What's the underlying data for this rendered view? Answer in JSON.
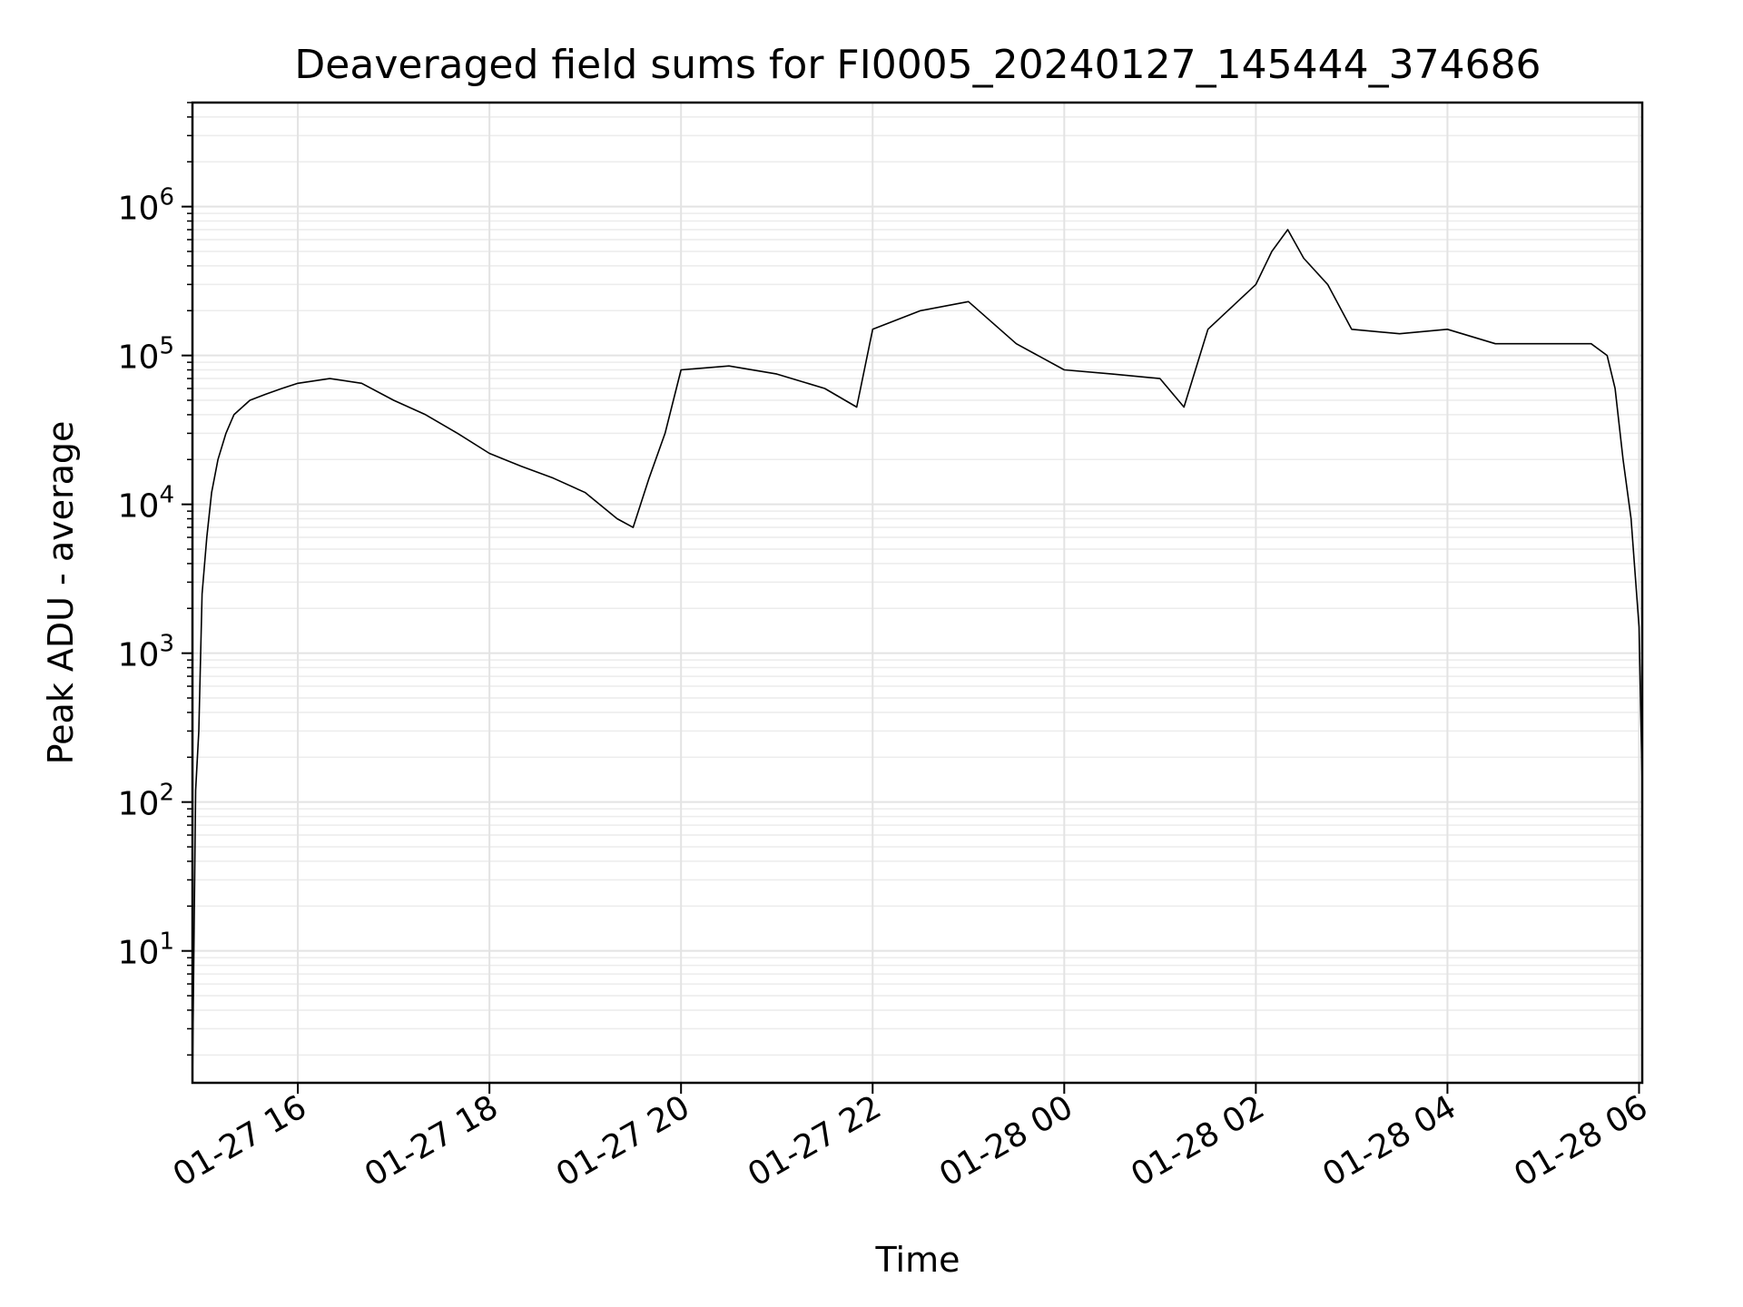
{
  "chart_data": {
    "type": "line",
    "title": "Deaveraged field sums for FI0005_20240127_145444_374686",
    "xlabel": "Time",
    "ylabel": "Peak ADU - average",
    "y_scale": "log",
    "ylim": [
      1.3,
      5000000
    ],
    "xlim": [
      "2024-01-27 14:54",
      "2024-01-28 06:02"
    ],
    "grid": "both",
    "line_color": "#000000",
    "x_ticks": [
      {
        "value": "2024-01-27 16:00",
        "label": "01-27 16"
      },
      {
        "value": "2024-01-27 18:00",
        "label": "01-27 18"
      },
      {
        "value": "2024-01-27 20:00",
        "label": "01-27 20"
      },
      {
        "value": "2024-01-27 22:00",
        "label": "01-27 22"
      },
      {
        "value": "2024-01-28 00:00",
        "label": "01-28 00"
      },
      {
        "value": "2024-01-28 02:00",
        "label": "01-28 02"
      },
      {
        "value": "2024-01-28 04:00",
        "label": "01-28 04"
      },
      {
        "value": "2024-01-28 06:00",
        "label": "01-28 06"
      }
    ],
    "y_ticks": [
      {
        "value": 10,
        "base": "10",
        "exp": "1"
      },
      {
        "value": 100,
        "base": "10",
        "exp": "2"
      },
      {
        "value": 1000,
        "base": "10",
        "exp": "3"
      },
      {
        "value": 10000,
        "base": "10",
        "exp": "4"
      },
      {
        "value": 100000,
        "base": "10",
        "exp": "5"
      },
      {
        "value": 1000000,
        "base": "10",
        "exp": "6"
      }
    ],
    "series": [
      {
        "x": [
          "2024-01-27 14:54",
          "2024-01-27 14:56",
          "2024-01-27 14:58",
          "2024-01-27 15:00",
          "2024-01-27 15:03",
          "2024-01-27 15:06",
          "2024-01-27 15:10",
          "2024-01-27 15:15",
          "2024-01-27 15:20",
          "2024-01-27 15:30",
          "2024-01-27 15:40",
          "2024-01-27 15:50",
          "2024-01-27 16:00",
          "2024-01-27 16:20",
          "2024-01-27 16:40",
          "2024-01-27 17:00",
          "2024-01-27 17:20",
          "2024-01-27 17:40",
          "2024-01-27 18:00",
          "2024-01-27 18:20",
          "2024-01-27 18:40",
          "2024-01-27 19:00",
          "2024-01-27 19:20",
          "2024-01-27 19:30",
          "2024-01-27 19:40",
          "2024-01-27 19:50",
          "2024-01-27 20:00",
          "2024-01-27 20:30",
          "2024-01-27 21:00",
          "2024-01-27 21:30",
          "2024-01-27 21:50",
          "2024-01-27 22:00",
          "2024-01-27 22:30",
          "2024-01-27 23:00",
          "2024-01-27 23:30",
          "2024-01-28 00:00",
          "2024-01-28 00:30",
          "2024-01-28 01:00",
          "2024-01-28 01:15",
          "2024-01-28 01:30",
          "2024-01-28 02:00",
          "2024-01-28 02:10",
          "2024-01-28 02:20",
          "2024-01-28 02:30",
          "2024-01-28 02:45",
          "2024-01-28 03:00",
          "2024-01-28 03:30",
          "2024-01-28 04:00",
          "2024-01-28 04:30",
          "2024-01-28 05:00",
          "2024-01-28 05:30",
          "2024-01-28 05:40",
          "2024-01-28 05:45",
          "2024-01-28 05:50",
          "2024-01-28 05:55",
          "2024-01-28 06:00",
          "2024-01-28 06:02"
        ],
        "values": [
          1.3,
          120,
          300,
          2500,
          6000,
          12000,
          20000,
          30000,
          40000,
          50000,
          55000,
          60000,
          65000,
          70000,
          65000,
          50000,
          40000,
          30000,
          22000,
          18000,
          15000,
          12000,
          8000,
          7000,
          15000,
          30000,
          80000,
          85000,
          75000,
          60000,
          45000,
          150000,
          200000,
          230000,
          120000,
          80000,
          75000,
          70000,
          45000,
          150000,
          300000,
          500000,
          700000,
          450000,
          300000,
          150000,
          140000,
          150000,
          120000,
          120000,
          120000,
          100000,
          60000,
          20000,
          8000,
          1500,
          130
        ]
      }
    ]
  }
}
